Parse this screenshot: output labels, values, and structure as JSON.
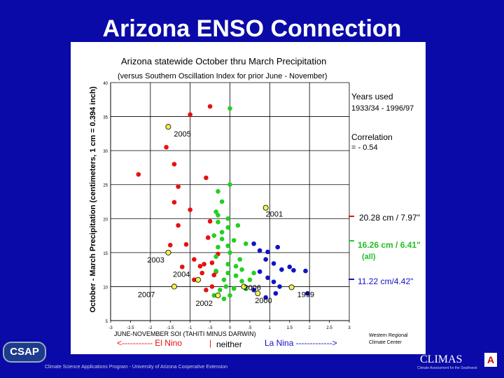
{
  "slide": {
    "title": "Arizona ENSO Connection",
    "footer_text": "Climate Science Applications Program - University of Arizona Cooperative Extension",
    "csap_logo": "CSAP",
    "climas_logo": "CLIMAS",
    "climas_tagline": "Climate Assessment for the Southwest",
    "a_logo": "A"
  },
  "chart_data": {
    "type": "scatter",
    "title": "Arizona statewide October thru March Precipitation",
    "subtitle": "(versus Southern Oscillation Index for prior June - November)",
    "xlabel": "JUNE-NOVEMBER SOI (TAHITI MINUS DARWIN)",
    "ylabel": "October - March Precipitation (centimeters, 1 cm = 0.394 inch)",
    "xlim": [
      -3,
      3
    ],
    "ylim": [
      5,
      40
    ],
    "xticks": [
      "-3",
      "-2.5",
      "-2",
      "-1.5",
      "-1",
      "-.5",
      "0",
      ".5",
      "1",
      "1.5",
      "2",
      "2.5",
      "3"
    ],
    "yticks": [
      "40",
      "35",
      "30",
      "25",
      "20",
      "15",
      "10",
      "5"
    ],
    "grid": "horizontal",
    "info_years_title": "Years used",
    "info_years_range": "1933/34 - 1996/97",
    "info_corr_title": "Correlation",
    "info_corr_value": "= - 0.54",
    "ref_lines": [
      {
        "y": 20.28,
        "label": "20.28 cm / 7.97\"",
        "color": "#e81010"
      },
      {
        "y": 16.26,
        "label": "16.26 cm / 6.41\"",
        "sublabel": "(all)",
        "color": "#22d022"
      },
      {
        "y": 11.22,
        "label": "11.22 cm/4.42\"",
        "color": "#1212c8"
      }
    ],
    "phase_labels": {
      "el_nino": "<----------- El Nino",
      "neither": "neither",
      "la_nina": "La Nina ------------->",
      "divider": "|"
    },
    "source": [
      "Western Regional",
      "Climate Center"
    ],
    "series": [
      {
        "name": "El Nino",
        "color": "#e81010",
        "points": [
          [
            -0.5,
            36.5
          ],
          [
            -1.0,
            35.3
          ],
          [
            -2.3,
            26.5
          ],
          [
            -1.6,
            30.5
          ],
          [
            -1.4,
            28.0
          ],
          [
            -1.3,
            24.7
          ],
          [
            -0.6,
            26.0
          ],
          [
            -1.4,
            22.4
          ],
          [
            -1.0,
            21.3
          ],
          [
            -1.3,
            19.0
          ],
          [
            -1.5,
            16.1
          ],
          [
            -0.5,
            19.6
          ],
          [
            -1.1,
            16.2
          ],
          [
            -0.9,
            14.0
          ],
          [
            -0.65,
            13.3
          ],
          [
            -0.55,
            17.2
          ],
          [
            -0.75,
            13.0
          ],
          [
            -0.7,
            12.0
          ],
          [
            -1.2,
            12.9
          ],
          [
            -0.9,
            11.0
          ],
          [
            -0.4,
            11.7
          ],
          [
            -0.6,
            9.5
          ],
          [
            -0.45,
            10.0
          ],
          [
            -0.35,
            12.2
          ],
          [
            -0.45,
            13.5
          ],
          [
            -0.3,
            14.8
          ]
        ]
      },
      {
        "name": "neither",
        "color": "#22d022",
        "points": [
          [
            0.0,
            36.2
          ],
          [
            0.0,
            25.0
          ],
          [
            -0.3,
            24.0
          ],
          [
            -0.2,
            22.5
          ],
          [
            -0.35,
            21.0
          ],
          [
            -0.3,
            20.5
          ],
          [
            -0.05,
            20.0
          ],
          [
            -0.3,
            19.5
          ],
          [
            -0.05,
            18.7
          ],
          [
            0.2,
            19.0
          ],
          [
            -0.2,
            18.0
          ],
          [
            -0.4,
            17.5
          ],
          [
            -0.2,
            17.0
          ],
          [
            0.1,
            16.8
          ],
          [
            0.4,
            16.3
          ],
          [
            -0.05,
            16.0
          ],
          [
            -0.3,
            15.8
          ],
          [
            0.0,
            15.0
          ],
          [
            -0.35,
            14.4
          ],
          [
            0.25,
            14.0
          ],
          [
            -0.05,
            13.3
          ],
          [
            0.15,
            13.0
          ],
          [
            0.3,
            12.5
          ],
          [
            0.6,
            12.0
          ],
          [
            -0.35,
            12.3
          ],
          [
            -0.05,
            12.0
          ],
          [
            0.15,
            11.6
          ],
          [
            -0.15,
            11.0
          ],
          [
            0.3,
            10.8
          ],
          [
            0.5,
            11.0
          ],
          [
            -0.1,
            10.0
          ],
          [
            0.1,
            9.7
          ],
          [
            -0.25,
            9.5
          ],
          [
            0.4,
            9.7
          ],
          [
            0.0,
            8.7
          ],
          [
            -0.15,
            8.2
          ],
          [
            -0.4,
            8.7
          ]
        ]
      },
      {
        "name": "La Nina",
        "color": "#1212c8",
        "points": [
          [
            0.6,
            16.3
          ],
          [
            0.75,
            15.3
          ],
          [
            0.95,
            15.1
          ],
          [
            1.2,
            15.8
          ],
          [
            0.9,
            14.0
          ],
          [
            1.1,
            13.4
          ],
          [
            1.3,
            12.5
          ],
          [
            1.5,
            12.9
          ],
          [
            1.6,
            12.4
          ],
          [
            1.9,
            12.3
          ],
          [
            0.75,
            12.2
          ],
          [
            0.95,
            11.3
          ],
          [
            1.1,
            10.7
          ],
          [
            1.25,
            10.0
          ],
          [
            0.6,
            9.5
          ],
          [
            1.15,
            9.0
          ],
          [
            1.95,
            9.0
          ],
          [
            0.9,
            8.4
          ]
        ]
      },
      {
        "name": "Recent years",
        "color": "#f2f250",
        "points": [
          {
            "x": -1.55,
            "y": 33.5,
            "label": "2005"
          },
          {
            "x": 0.9,
            "y": 21.6,
            "label": "2001"
          },
          {
            "x": -1.55,
            "y": 15.0,
            "label": "2003"
          },
          {
            "x": -0.8,
            "y": 11.0,
            "label": "2004"
          },
          {
            "x": -1.4,
            "y": 10.0,
            "label": "2007"
          },
          {
            "x": -0.3,
            "y": 8.7,
            "label": "2002"
          },
          {
            "x": 0.35,
            "y": 10.0,
            "label": "2006"
          },
          {
            "x": 0.7,
            "y": 9.0,
            "label": "2000"
          },
          {
            "x": 1.55,
            "y": 9.9,
            "label": "1999"
          }
        ]
      }
    ]
  }
}
